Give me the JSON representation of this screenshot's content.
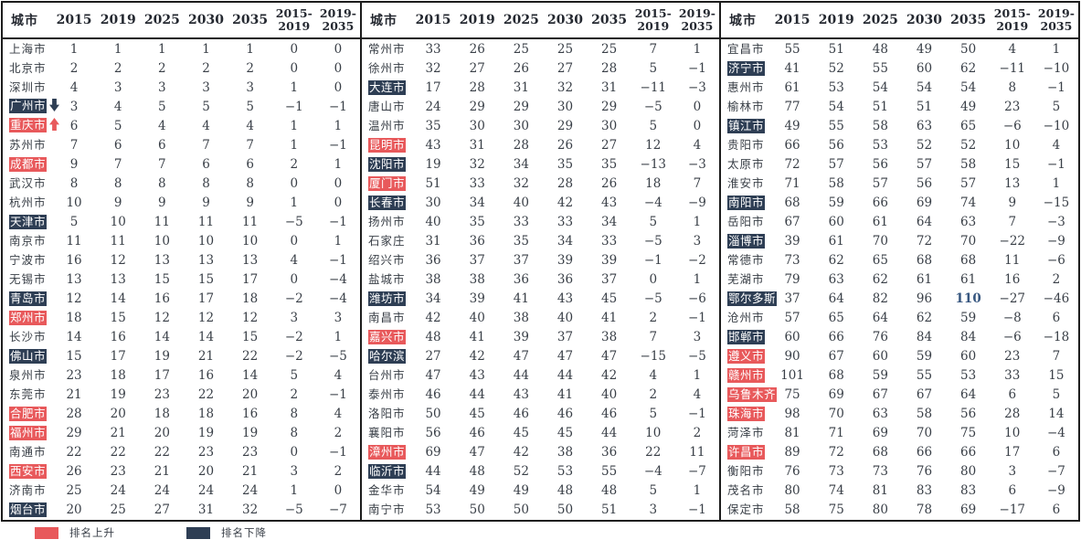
{
  "columns": {
    "city": "城市",
    "years": [
      "2015",
      "2019",
      "2025",
      "2030",
      "2035"
    ],
    "change1_line1": "2015-",
    "change1_line2": "2019",
    "change2_line1": "2019-",
    "change2_line2": "2035"
  },
  "legend": {
    "up": "排名上升",
    "down": "排名下降"
  },
  "colors": {
    "rank_up": "#E8595B",
    "rank_down": "#2E3E54",
    "text": "#383E46",
    "special_value": "#36567F"
  },
  "panels": [
    {
      "rows": [
        {
          "city": "上海市",
          "values": [
            1,
            1,
            1,
            1,
            1,
            0,
            0
          ],
          "highlight": ""
        },
        {
          "city": "北京市",
          "values": [
            2,
            2,
            2,
            2,
            2,
            0,
            0
          ],
          "highlight": ""
        },
        {
          "city": "深圳市",
          "values": [
            4,
            3,
            3,
            3,
            3,
            1,
            0
          ],
          "highlight": ""
        },
        {
          "city": "广州市",
          "values": [
            3,
            4,
            5,
            5,
            5,
            -1,
            -1
          ],
          "highlight": "down",
          "arrow": "down"
        },
        {
          "city": "重庆市",
          "values": [
            6,
            5,
            4,
            4,
            4,
            1,
            1
          ],
          "highlight": "up",
          "arrow": "up"
        },
        {
          "city": "苏州市",
          "values": [
            7,
            6,
            6,
            7,
            7,
            1,
            -1
          ],
          "highlight": ""
        },
        {
          "city": "成都市",
          "values": [
            9,
            7,
            7,
            6,
            6,
            2,
            1
          ],
          "highlight": "up"
        },
        {
          "city": "武汉市",
          "values": [
            8,
            8,
            8,
            8,
            8,
            0,
            0
          ],
          "highlight": ""
        },
        {
          "city": "杭州市",
          "values": [
            10,
            9,
            9,
            9,
            9,
            1,
            0
          ],
          "highlight": ""
        },
        {
          "city": "天津市",
          "values": [
            5,
            10,
            11,
            11,
            11,
            -5,
            -1
          ],
          "highlight": "down"
        },
        {
          "city": "南京市",
          "values": [
            11,
            11,
            10,
            10,
            10,
            0,
            1
          ],
          "highlight": ""
        },
        {
          "city": "宁波市",
          "values": [
            16,
            12,
            13,
            13,
            13,
            4,
            -1
          ],
          "highlight": ""
        },
        {
          "city": "无锡市",
          "values": [
            13,
            13,
            15,
            15,
            17,
            0,
            -4
          ],
          "highlight": ""
        },
        {
          "city": "青岛市",
          "values": [
            12,
            14,
            16,
            17,
            18,
            -2,
            -4
          ],
          "highlight": "down"
        },
        {
          "city": "郑州市",
          "values": [
            18,
            15,
            12,
            12,
            12,
            3,
            3
          ],
          "highlight": "up"
        },
        {
          "city": "长沙市",
          "values": [
            14,
            16,
            14,
            14,
            15,
            -2,
            1
          ],
          "highlight": ""
        },
        {
          "city": "佛山市",
          "values": [
            15,
            17,
            19,
            21,
            22,
            -2,
            -5
          ],
          "highlight": "down"
        },
        {
          "city": "泉州市",
          "values": [
            23,
            18,
            17,
            16,
            14,
            5,
            4
          ],
          "highlight": ""
        },
        {
          "city": "东莞市",
          "values": [
            21,
            19,
            23,
            22,
            20,
            2,
            -1
          ],
          "highlight": ""
        },
        {
          "city": "合肥市",
          "values": [
            28,
            20,
            18,
            18,
            16,
            8,
            4
          ],
          "highlight": "up"
        },
        {
          "city": "福州市",
          "values": [
            29,
            21,
            20,
            19,
            19,
            8,
            2
          ],
          "highlight": "up"
        },
        {
          "city": "南通市",
          "values": [
            22,
            22,
            22,
            23,
            23,
            0,
            -1
          ],
          "highlight": ""
        },
        {
          "city": "西安市",
          "values": [
            26,
            23,
            21,
            20,
            21,
            3,
            2
          ],
          "highlight": "up"
        },
        {
          "city": "济南市",
          "values": [
            25,
            24,
            24,
            24,
            24,
            1,
            0
          ],
          "highlight": ""
        },
        {
          "city": "烟台市",
          "values": [
            20,
            25,
            27,
            31,
            32,
            -5,
            -7
          ],
          "highlight": "down"
        }
      ]
    },
    {
      "rows": [
        {
          "city": "常州市",
          "values": [
            33,
            26,
            25,
            25,
            25,
            7,
            1
          ],
          "highlight": ""
        },
        {
          "city": "徐州市",
          "values": [
            32,
            27,
            26,
            27,
            28,
            5,
            -1
          ],
          "highlight": ""
        },
        {
          "city": "大连市",
          "values": [
            17,
            28,
            31,
            32,
            31,
            -11,
            -3
          ],
          "highlight": "down"
        },
        {
          "city": "唐山市",
          "values": [
            24,
            29,
            29,
            30,
            29,
            -5,
            0
          ],
          "highlight": ""
        },
        {
          "city": "温州市",
          "values": [
            35,
            30,
            30,
            29,
            30,
            5,
            0
          ],
          "highlight": ""
        },
        {
          "city": "昆明市",
          "values": [
            43,
            31,
            28,
            26,
            27,
            12,
            4
          ],
          "highlight": "up"
        },
        {
          "city": "沈阳市",
          "values": [
            19,
            32,
            34,
            35,
            35,
            -13,
            -3
          ],
          "highlight": "down"
        },
        {
          "city": "厦门市",
          "values": [
            51,
            33,
            32,
            28,
            26,
            18,
            7
          ],
          "highlight": "up"
        },
        {
          "city": "长春市",
          "values": [
            30,
            34,
            40,
            42,
            43,
            -4,
            -9
          ],
          "highlight": "down"
        },
        {
          "city": "扬州市",
          "values": [
            40,
            35,
            33,
            33,
            34,
            5,
            1
          ],
          "highlight": ""
        },
        {
          "city": "石家庄",
          "values": [
            31,
            36,
            35,
            34,
            33,
            -5,
            3
          ],
          "highlight": ""
        },
        {
          "city": "绍兴市",
          "values": [
            36,
            37,
            37,
            39,
            39,
            -1,
            -2
          ],
          "highlight": ""
        },
        {
          "city": "盐城市",
          "values": [
            38,
            38,
            36,
            36,
            37,
            0,
            1
          ],
          "highlight": ""
        },
        {
          "city": "潍坊市",
          "values": [
            34,
            39,
            41,
            43,
            45,
            -5,
            -6
          ],
          "highlight": "down"
        },
        {
          "city": "南昌市",
          "values": [
            42,
            40,
            38,
            40,
            41,
            2,
            -1
          ],
          "highlight": ""
        },
        {
          "city": "嘉兴市",
          "values": [
            48,
            41,
            39,
            37,
            38,
            7,
            3
          ],
          "highlight": "up"
        },
        {
          "city": "哈尔滨",
          "values": [
            27,
            42,
            47,
            47,
            47,
            -15,
            -5
          ],
          "highlight": "down"
        },
        {
          "city": "台州市",
          "values": [
            47,
            43,
            44,
            44,
            42,
            4,
            1
          ],
          "highlight": ""
        },
        {
          "city": "泰州市",
          "values": [
            46,
            44,
            43,
            41,
            40,
            2,
            4
          ],
          "highlight": ""
        },
        {
          "city": "洛阳市",
          "values": [
            50,
            45,
            46,
            46,
            46,
            5,
            -1
          ],
          "highlight": ""
        },
        {
          "city": "襄阳市",
          "values": [
            56,
            46,
            45,
            45,
            44,
            10,
            2
          ],
          "highlight": ""
        },
        {
          "city": "漳州市",
          "values": [
            69,
            47,
            42,
            38,
            36,
            22,
            11
          ],
          "highlight": "up"
        },
        {
          "city": "临沂市",
          "values": [
            44,
            48,
            52,
            53,
            55,
            -4,
            -7
          ],
          "highlight": "down"
        },
        {
          "city": "金华市",
          "values": [
            54,
            49,
            49,
            48,
            48,
            5,
            1
          ],
          "highlight": ""
        },
        {
          "city": "南宁市",
          "values": [
            53,
            50,
            50,
            50,
            51,
            3,
            -1
          ],
          "highlight": ""
        }
      ]
    },
    {
      "rows": [
        {
          "city": "宜昌市",
          "values": [
            55,
            51,
            48,
            49,
            50,
            4,
            1
          ],
          "highlight": ""
        },
        {
          "city": "济宁市",
          "values": [
            41,
            52,
            55,
            60,
            62,
            -11,
            -10
          ],
          "highlight": "down"
        },
        {
          "city": "惠州市",
          "values": [
            61,
            53,
            54,
            54,
            54,
            8,
            -1
          ],
          "highlight": ""
        },
        {
          "city": "榆林市",
          "values": [
            77,
            54,
            51,
            51,
            49,
            23,
            5
          ],
          "highlight": ""
        },
        {
          "city": "镇江市",
          "values": [
            49,
            55,
            58,
            63,
            65,
            -6,
            -10
          ],
          "highlight": "down"
        },
        {
          "city": "贵阳市",
          "values": [
            66,
            56,
            53,
            52,
            52,
            10,
            4
          ],
          "highlight": ""
        },
        {
          "city": "太原市",
          "values": [
            72,
            57,
            56,
            57,
            58,
            15,
            -1
          ],
          "highlight": ""
        },
        {
          "city": "淮安市",
          "values": [
            71,
            58,
            57,
            56,
            57,
            13,
            1
          ],
          "highlight": ""
        },
        {
          "city": "南阳市",
          "values": [
            68,
            59,
            66,
            69,
            74,
            9,
            -15
          ],
          "highlight": "down"
        },
        {
          "city": "岳阳市",
          "values": [
            67,
            60,
            61,
            64,
            63,
            7,
            -3
          ],
          "highlight": ""
        },
        {
          "city": "淄博市",
          "values": [
            39,
            61,
            70,
            72,
            70,
            -22,
            -9
          ],
          "highlight": "down"
        },
        {
          "city": "常德市",
          "values": [
            73,
            62,
            65,
            68,
            68,
            11,
            -6
          ],
          "highlight": ""
        },
        {
          "city": "芜湖市",
          "values": [
            79,
            63,
            62,
            61,
            61,
            16,
            2
          ],
          "highlight": ""
        },
        {
          "city": "鄂尔多斯",
          "values": [
            37,
            64,
            82,
            96,
            110,
            -27,
            -46
          ],
          "highlight": "down",
          "special_col": 4
        },
        {
          "city": "沧州市",
          "values": [
            57,
            65,
            64,
            62,
            59,
            -8,
            6
          ],
          "highlight": ""
        },
        {
          "city": "邯郸市",
          "values": [
            60,
            66,
            76,
            84,
            84,
            -6,
            -18
          ],
          "highlight": "down"
        },
        {
          "city": "遵义市",
          "values": [
            90,
            67,
            60,
            59,
            60,
            23,
            7
          ],
          "highlight": "up"
        },
        {
          "city": "赣州市",
          "values": [
            101,
            68,
            59,
            55,
            53,
            33,
            15
          ],
          "highlight": "up"
        },
        {
          "city": "乌鲁木齐",
          "values": [
            75,
            69,
            67,
            67,
            64,
            6,
            5
          ],
          "highlight": "up"
        },
        {
          "city": "珠海市",
          "values": [
            98,
            70,
            63,
            58,
            56,
            28,
            14
          ],
          "highlight": "up"
        },
        {
          "city": "菏泽市",
          "values": [
            81,
            71,
            69,
            70,
            75,
            10,
            -4
          ],
          "highlight": ""
        },
        {
          "city": "许昌市",
          "values": [
            89,
            72,
            68,
            66,
            66,
            17,
            6
          ],
          "highlight": "up"
        },
        {
          "city": "衡阳市",
          "values": [
            76,
            73,
            73,
            76,
            80,
            3,
            -7
          ],
          "highlight": ""
        },
        {
          "city": "茂名市",
          "values": [
            80,
            74,
            81,
            83,
            83,
            6,
            -9
          ],
          "highlight": ""
        },
        {
          "city": "保定市",
          "values": [
            58,
            75,
            80,
            78,
            69,
            -17,
            6
          ],
          "highlight": ""
        }
      ]
    }
  ]
}
